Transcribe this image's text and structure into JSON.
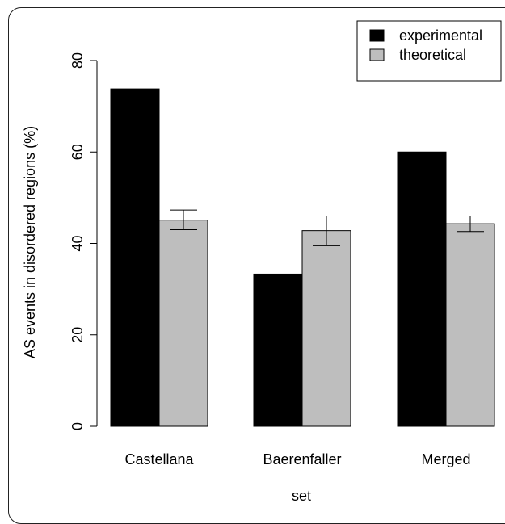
{
  "chart_data": {
    "type": "bar",
    "title": "",
    "xlabel": "set",
    "ylabel": "AS events in disordered regions (%)",
    "categories": [
      "Castellana",
      "Baerenfaller",
      "Merged"
    ],
    "ylim": [
      0,
      80
    ],
    "yticks": [
      0,
      20,
      40,
      60,
      80
    ],
    "legend_position": "top-right",
    "series": [
      {
        "name": "experimental",
        "color": "#000000",
        "values": [
          73.8,
          33.3,
          60.0
        ]
      },
      {
        "name": "theoretical",
        "color": "#bebebe",
        "values": [
          45.1,
          42.8,
          44.3
        ],
        "error_low": [
          43.0,
          39.5,
          42.6
        ],
        "error_high": [
          47.3,
          46.0,
          46.0
        ]
      }
    ],
    "grid": false
  }
}
